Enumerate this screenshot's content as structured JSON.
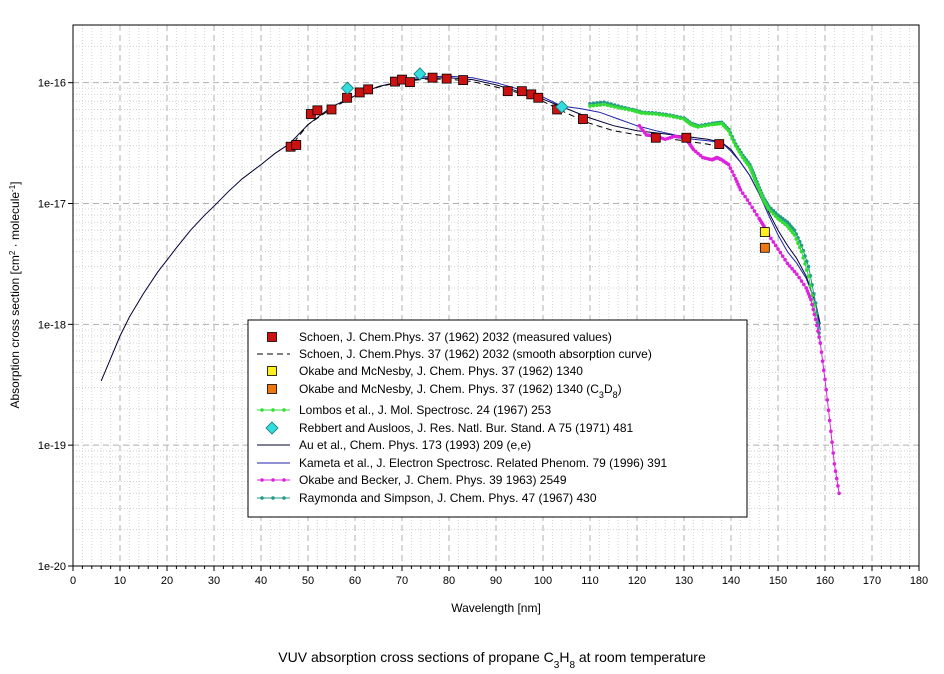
{
  "chart_data": {
    "type": "scatter",
    "title": "VUV absorption cross sections of propane",
    "title_parts": {
      "prefix": "VUV absorption cross sections of propane C",
      "sub1": "3",
      "mid": "H",
      "sub2": "8",
      "suffix": " at room temperature"
    },
    "xlabel": "Wavelength [nm]",
    "ylabel_parts": {
      "prefix": "Absorption cross section [cm",
      "sup1": "2",
      "mid": " · molecule",
      "sup2": "-1",
      "suffix": "]"
    },
    "x_scale": "linear",
    "y_scale": "log",
    "xlim": [
      0,
      180
    ],
    "ylim": [
      1e-20,
      3e-16
    ],
    "x_ticks": [
      "0",
      "10",
      "20",
      "30",
      "40",
      "50",
      "60",
      "70",
      "80",
      "90",
      "100",
      "110",
      "120",
      "130",
      "140",
      "150",
      "160",
      "170",
      "180"
    ],
    "y_ticks": [
      {
        "label": "1e-20",
        "value": 1e-20
      },
      {
        "label": "1e-19",
        "value": 1e-19
      },
      {
        "label": "1e-18",
        "value": 1e-18
      },
      {
        "label": "1e-17",
        "value": 1e-17
      },
      {
        "label": "1e-16",
        "value": 1e-16
      }
    ],
    "grid": true,
    "legend_position": "lower-center",
    "series": [
      {
        "name": "Schoen, J. Chem.Phys. 37 (1962) 2032 (measured values)",
        "style": "square",
        "color": "#cc1111",
        "x": [
          46.3,
          47.5,
          50.6,
          52.0,
          55.0,
          58.3,
          61.0,
          62.8,
          68.5,
          70.0,
          71.7,
          76.5,
          79.5,
          83.0,
          92.5,
          95.5,
          97.5,
          99.0,
          103.0,
          108.5,
          124.0,
          130.5,
          137.5
        ],
        "y": [
          2.95e-17,
          3.05e-17,
          5.5e-17,
          5.9e-17,
          6e-17,
          7.5e-17,
          8.3e-17,
          8.8e-17,
          1.02e-16,
          1.06e-16,
          1.01e-16,
          1.1e-16,
          1.08e-16,
          1.05e-16,
          8.5e-17,
          8.5e-17,
          8e-17,
          7.5e-17,
          6e-17,
          5e-17,
          3.5e-17,
          3.5e-17,
          3.1e-17
        ]
      },
      {
        "name": "Schoen, J. Chem.Phys. 37 (1962) 2032 (smooth absorption curve)",
        "style": "dash",
        "color": "#000000",
        "x": [
          47,
          50,
          55,
          60,
          65,
          70,
          75,
          80,
          85,
          90,
          95,
          100,
          105,
          110,
          115,
          120,
          125,
          130,
          135,
          138
        ],
        "y": [
          3.2e-17,
          4.5e-17,
          6.1e-17,
          7.8e-17,
          9.2e-17,
          1.02e-16,
          1.07e-16,
          1.07e-16,
          1.02e-16,
          9.2e-17,
          8.2e-17,
          7e-17,
          5.6e-17,
          4.6e-17,
          4e-17,
          3.7e-17,
          3.5e-17,
          3.3e-17,
          3.1e-17,
          2.95e-17
        ]
      },
      {
        "name": "Okabe and McNesby, J. Chem. Phys. 37 (1962) 1340",
        "style": "square",
        "color": "#ffee22",
        "x": [
          147.2
        ],
        "y": [
          5.8e-18
        ]
      },
      {
        "name": "Okabe and McNesby, J. Chem. Phys. 37 (1962) 1340 (C3D8)",
        "name_parts": {
          "prefix": "Okabe and McNesby, J. Chem. Phys. 37 (1962) 1340 (C",
          "sub1": "3",
          "mid": "D",
          "sub2": "8",
          "suffix": ")"
        },
        "style": "square",
        "color": "#ee7711",
        "x": [
          147.2
        ],
        "y": [
          4.3e-18
        ]
      },
      {
        "name": "Lombos et al., J. Mol. Spectrosc. 24 (1967) 253",
        "style": "dotline",
        "color": "#33dd33",
        "x": [
          110,
          113,
          116,
          119,
          121,
          124,
          127,
          130,
          131.5,
          133,
          136,
          138,
          139.5,
          141,
          142.5,
          144,
          145,
          146,
          147,
          148,
          150,
          152,
          153.5,
          155,
          156.5,
          158
        ],
        "y": [
          6.4e-17,
          6.6e-17,
          6.2e-17,
          5.9e-17,
          5.6e-17,
          5.5e-17,
          5.3e-17,
          5e-17,
          4.5e-17,
          4.3e-17,
          4.5e-17,
          4.6e-17,
          4e-17,
          3e-17,
          2.4e-17,
          2e-17,
          1.6e-17,
          1.3e-17,
          1.05e-17,
          9e-18,
          7.5e-18,
          6.5e-18,
          5.5e-18,
          4e-18,
          2.5e-18,
          1.2e-18
        ]
      },
      {
        "name": "Rebbert and Ausloos, J. Res. Natl. Bur. Stand. A 75 (1971) 481",
        "style": "diamond",
        "color": "#33dddd",
        "x": [
          58.4,
          73.8,
          104.0
        ],
        "y": [
          9e-17,
          1.18e-16,
          6.3e-17
        ]
      },
      {
        "name": "Au et al., Chem. Phys. 173 (1993) 209 (e,e)",
        "style": "line",
        "color": "#000033",
        "x": [
          6,
          8,
          10,
          12,
          15,
          18,
          20,
          22,
          25,
          28,
          30,
          33,
          36,
          40,
          43,
          46,
          50,
          55,
          60,
          65,
          70,
          75,
          80,
          85,
          90,
          95,
          100,
          105,
          110,
          115,
          120,
          125,
          130,
          135,
          138,
          140,
          142,
          144,
          146,
          148,
          150,
          152,
          154,
          156,
          158,
          159
        ],
        "y": [
          3.4e-19,
          5.2e-19,
          8e-19,
          1.15e-18,
          1.8e-18,
          2.7e-18,
          3.4e-18,
          4.3e-18,
          6e-18,
          8e-18,
          9.5e-18,
          1.25e-17,
          1.6e-17,
          2.1e-17,
          2.6e-17,
          3.1e-17,
          4.5e-17,
          6.3e-17,
          7.8e-17,
          9.3e-17,
          1.03e-16,
          1.09e-16,
          1.1e-16,
          1.06e-16,
          9.6e-17,
          8.4e-17,
          7.3e-17,
          6.1e-17,
          5.1e-17,
          4.4e-17,
          4e-17,
          3.8e-17,
          3.6e-17,
          3.4e-17,
          3.2e-17,
          2.8e-17,
          2.2e-17,
          1.7e-17,
          1.2e-17,
          8.5e-18,
          6e-18,
          4.5e-18,
          3.5e-18,
          2.5e-18,
          1.5e-18,
          1e-18
        ]
      },
      {
        "name": "Kameta et al., J. Electron Spectrosc. Related Phenom. 79 (1996) 391",
        "style": "line",
        "color": "#2222aa",
        "x": [
          70,
          75,
          80,
          85,
          90,
          95,
          100,
          104,
          108,
          112,
          116,
          120,
          124,
          128,
          130,
          132,
          135,
          138,
          140,
          142,
          144,
          146,
          148,
          150,
          152,
          154,
          156,
          158,
          159
        ],
        "y": [
          1.06e-16,
          1.12e-16,
          1.13e-16,
          1.1e-16,
          1e-16,
          8.8e-17,
          7.6e-17,
          6.4e-17,
          6.1e-17,
          5.7e-17,
          5e-17,
          4.4e-17,
          4e-17,
          3.7e-17,
          3.5e-17,
          3.4e-17,
          3.3e-17,
          3.2e-17,
          2.7e-17,
          2.2e-17,
          1.7e-17,
          1.2e-17,
          8e-18,
          5.5e-18,
          4e-18,
          3.2e-18,
          2.4e-18,
          1.5e-18,
          9e-19
        ]
      },
      {
        "name": "Okabe and Becker, J. Chem. Phys. 39 1963) 2549",
        "style": "dotline",
        "color": "#dd22dd",
        "x": [
          120.5,
          122,
          124,
          126,
          128,
          130,
          131,
          132,
          134,
          136,
          137,
          138,
          139.5,
          141,
          142,
          144,
          146,
          147,
          148,
          150,
          152,
          154,
          156,
          157,
          158,
          159,
          160,
          161,
          162,
          163
        ],
        "y": [
          4.4e-17,
          3.7e-17,
          3.6e-17,
          3.4e-17,
          3.6e-17,
          3.5e-17,
          3.2e-17,
          2.8e-17,
          2.4e-17,
          2.3e-17,
          2.4e-17,
          2.3e-17,
          2.1e-17,
          1.6e-17,
          1.3e-17,
          1e-17,
          7.5e-18,
          6.5e-18,
          5.5e-18,
          4.2e-18,
          3.2e-18,
          2.6e-18,
          2e-18,
          1.6e-18,
          1.1e-18,
          7e-19,
          3.5e-19,
          1.6e-19,
          7e-20,
          4e-20
        ]
      },
      {
        "name": "Raymonda and Simpson, J. Chem. Phys. 47 (1967) 430",
        "style": "dotline",
        "color": "#229988",
        "x": [
          110,
          113,
          116,
          119,
          121,
          124,
          127,
          130,
          131.5,
          133,
          136,
          138,
          139.5,
          141,
          142.5,
          144,
          145,
          146,
          147,
          148,
          150,
          152,
          153.5,
          155,
          156.5,
          158,
          159
        ],
        "y": [
          6.7e-17,
          6.9e-17,
          6.4e-17,
          6e-17,
          5.7e-17,
          5.6e-17,
          5.4e-17,
          5.1e-17,
          4.6e-17,
          4.4e-17,
          4.6e-17,
          4.7e-17,
          4.1e-17,
          3.1e-17,
          2.5e-17,
          2.1e-17,
          1.7e-17,
          1.35e-17,
          1.1e-17,
          9.5e-18,
          8e-18,
          7e-18,
          6e-18,
          4.5e-18,
          3e-18,
          1.5e-18,
          7e-19
        ]
      }
    ]
  }
}
